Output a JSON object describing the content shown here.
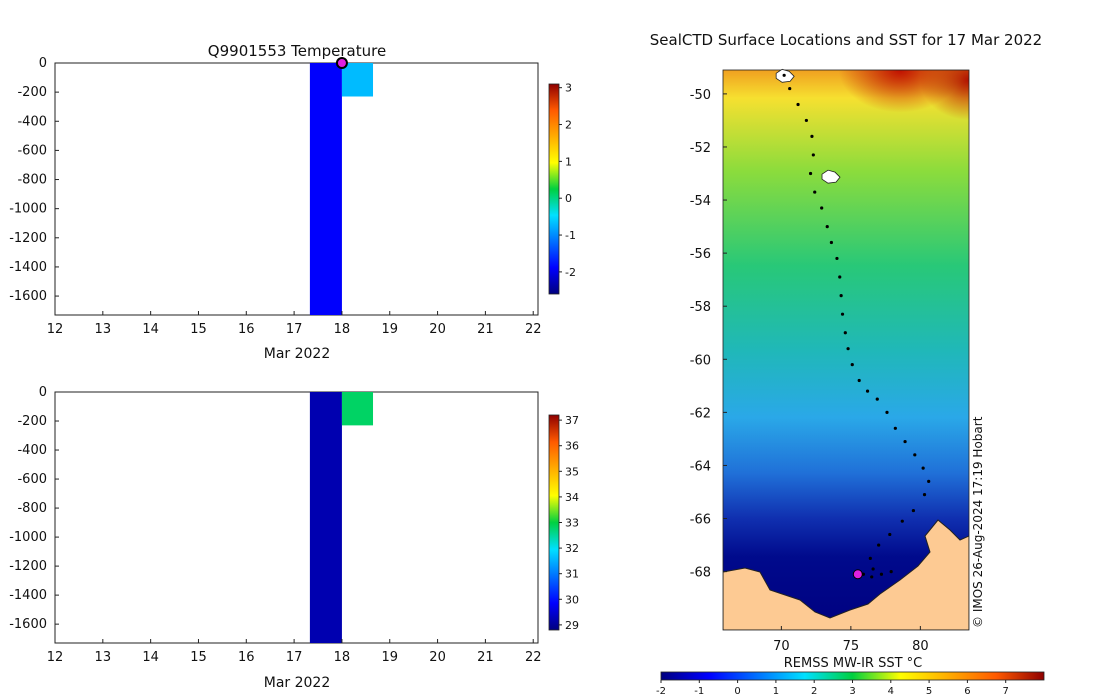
{
  "chart_data": [
    {
      "type": "heatmap",
      "title": "Q9901553  Temperature",
      "xlabel": "Mar 2022",
      "ylabel": "",
      "xlim": [
        12,
        22.1
      ],
      "ylim": [
        -1730,
        0
      ],
      "x_ticks": [
        "12",
        "13",
        "14",
        "15",
        "16",
        "17",
        "18",
        "19",
        "20",
        "21",
        "22"
      ],
      "y_ticks": [
        "0",
        "-200",
        "-400",
        "-600",
        "-800",
        "-1000",
        "-1200",
        "-1400",
        "-1600"
      ],
      "colorbar_ticks": [
        "3",
        "2",
        "1",
        "0",
        "-1",
        "-2"
      ],
      "colorbar_range": [
        -2.6,
        3.1
      ],
      "cells": [
        {
          "x0": 17.33,
          "x1": 18.0,
          "y0": -1730,
          "y1": 0,
          "value": -1.9
        },
        {
          "x0": 18.0,
          "x1": 18.65,
          "y0": -230,
          "y1": 0,
          "value": -0.7
        }
      ],
      "marker": {
        "x": 18.0,
        "y": 0,
        "color": "#e020e0"
      }
    },
    {
      "type": "heatmap",
      "title": "",
      "xlabel": "Mar 2022",
      "ylabel": "",
      "xlim": [
        12,
        22.1
      ],
      "ylim": [
        -1730,
        0
      ],
      "x_ticks": [
        "12",
        "13",
        "14",
        "15",
        "16",
        "17",
        "18",
        "19",
        "20",
        "21",
        "22"
      ],
      "y_ticks": [
        "0",
        "-200",
        "-400",
        "-600",
        "-800",
        "-1000",
        "-1200",
        "-1400",
        "-1600"
      ],
      "colorbar_ticks": [
        "37",
        "36",
        "35",
        "34",
        "33",
        "32",
        "31",
        "30",
        "29"
      ],
      "colorbar_range": [
        28.8,
        37.2
      ],
      "cells": [
        {
          "x0": 17.33,
          "x1": 18.0,
          "y0": -1730,
          "y1": 0,
          "value": 29.2
        },
        {
          "x0": 18.0,
          "x1": 18.65,
          "y0": -230,
          "y1": 0,
          "value": 32.8
        }
      ]
    },
    {
      "type": "heatmap",
      "title": "SealCTD Surface Locations and SST for 17 Mar 2022",
      "xlabel": "",
      "ylabel": "",
      "colorbar_label": "REMSS MW-IR SST °C",
      "credit": "© IMOS 26-Aug-2024 17:19 Hobart",
      "xlim": [
        65.8,
        83.5
      ],
      "ylim": [
        -70.2,
        -49.1
      ],
      "x_ticks": [
        "70",
        "75",
        "80"
      ],
      "y_ticks": [
        "-50",
        "-52",
        "-54",
        "-56",
        "-58",
        "-60",
        "-62",
        "-64",
        "-66",
        "-68"
      ],
      "colorbar_ticks": [
        "-2",
        "-1",
        "0",
        "1",
        "2",
        "3",
        "4",
        "5",
        "6",
        "7"
      ],
      "colorbar_range": [
        -2,
        8
      ],
      "track": [
        [
          70.2,
          -49.3
        ],
        [
          70.6,
          -49.8
        ],
        [
          71.2,
          -50.4
        ],
        [
          71.8,
          -51.0
        ],
        [
          72.2,
          -51.6
        ],
        [
          72.3,
          -52.3
        ],
        [
          72.1,
          -53.0
        ],
        [
          72.4,
          -53.7
        ],
        [
          72.9,
          -54.3
        ],
        [
          73.3,
          -55.0
        ],
        [
          73.6,
          -55.6
        ],
        [
          74.0,
          -56.2
        ],
        [
          74.2,
          -56.9
        ],
        [
          74.3,
          -57.6
        ],
        [
          74.4,
          -58.3
        ],
        [
          74.6,
          -59.0
        ],
        [
          74.8,
          -59.6
        ],
        [
          75.1,
          -60.2
        ],
        [
          75.6,
          -60.8
        ],
        [
          76.2,
          -61.2
        ],
        [
          76.9,
          -61.5
        ],
        [
          77.6,
          -62.0
        ],
        [
          78.2,
          -62.6
        ],
        [
          78.9,
          -63.1
        ],
        [
          79.6,
          -63.6
        ],
        [
          80.2,
          -64.1
        ],
        [
          80.6,
          -64.6
        ],
        [
          80.3,
          -65.1
        ],
        [
          79.5,
          -65.7
        ],
        [
          78.7,
          -66.1
        ],
        [
          77.8,
          -66.6
        ],
        [
          77.0,
          -67.0
        ],
        [
          76.4,
          -67.5
        ],
        [
          76.6,
          -67.9
        ],
        [
          77.2,
          -68.1
        ],
        [
          77.9,
          -68.0
        ],
        [
          76.5,
          -68.2
        ],
        [
          75.9,
          -68.1
        ]
      ],
      "marker": {
        "lon": 75.5,
        "lat": -68.1,
        "color": "#e020e0"
      },
      "islands": [
        [
          70.2,
          -49.3
        ],
        [
          73.5,
          -53.1
        ]
      ]
    }
  ]
}
